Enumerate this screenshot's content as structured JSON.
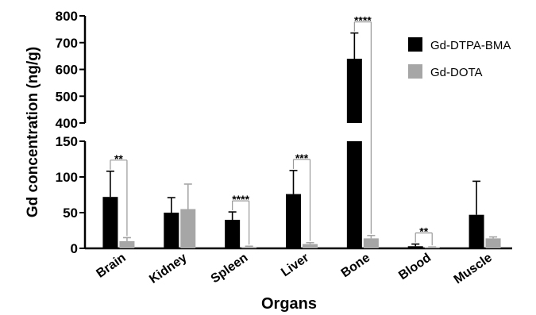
{
  "chart_data": {
    "type": "bar",
    "title": "",
    "xlabel": "Organs",
    "ylabel": "Gd concentration (ng/g)",
    "categories": [
      "Brain",
      "Kidney",
      "Spleen",
      "Liver",
      "Bone",
      "Blood",
      "Muscle"
    ],
    "series": [
      {
        "name": "Gd-DTPA-BMA",
        "color": "#000000",
        "values": [
          72,
          50,
          40,
          76,
          640,
          3,
          47
        ],
        "errors": [
          36,
          21,
          11,
          33,
          96,
          3,
          47
        ]
      },
      {
        "name": "Gd-DOTA",
        "color": "#a6a6a6",
        "values": [
          10,
          55,
          2,
          6,
          14,
          1,
          14
        ],
        "errors": [
          5,
          35,
          1,
          2,
          4,
          1,
          2
        ]
      }
    ],
    "y_axis_broken": true,
    "y_lower_segment": {
      "range": [
        0,
        150
      ],
      "ticks": [
        "0",
        "50",
        "100",
        "150"
      ]
    },
    "y_upper_segment": {
      "range": [
        400,
        800
      ],
      "ticks": [
        "400",
        "500",
        "600",
        "700",
        "800"
      ]
    },
    "significance": [
      {
        "category": "Brain",
        "label": "**"
      },
      {
        "category": "Spleen",
        "label": "****"
      },
      {
        "category": "Liver",
        "label": "***"
      },
      {
        "category": "Bone",
        "label": "****"
      },
      {
        "category": "Blood",
        "label": "**"
      }
    ],
    "legend_position": "top-right",
    "grid": false
  }
}
